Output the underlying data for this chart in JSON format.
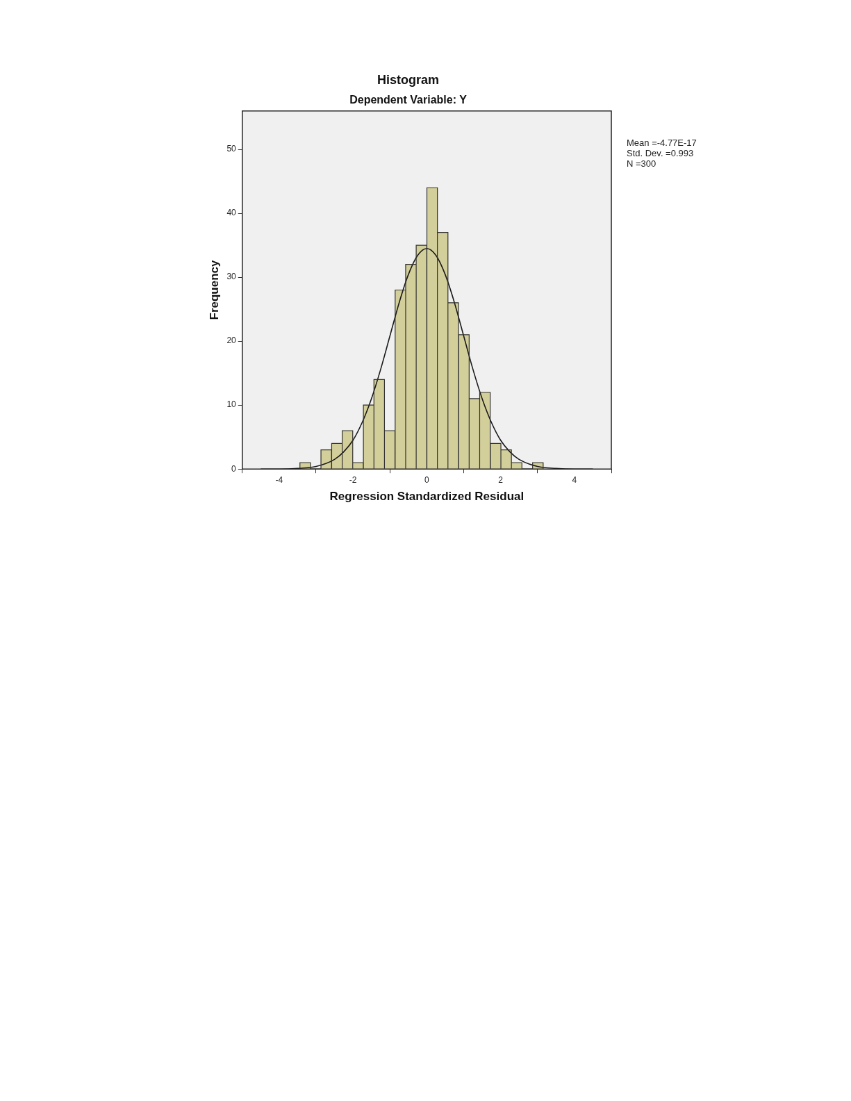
{
  "chart_data": {
    "type": "histogram",
    "title": "Histogram",
    "subtitle": "Dependent Variable: Y",
    "xlabel": "Regression Standardized Residual",
    "ylabel": "Frequency",
    "bins": [
      -3.44,
      -3.15,
      -2.87,
      -2.58,
      -2.29,
      -2.01,
      -1.72,
      -1.43,
      -1.15,
      -0.86,
      -0.57,
      -0.29,
      0,
      0.29,
      0.57,
      0.86,
      1.15,
      1.43,
      1.72,
      2.01,
      2.29,
      2.58,
      2.87,
      3.15
    ],
    "values": [
      1,
      0,
      3,
      4,
      6,
      1,
      10,
      14,
      6,
      28,
      32,
      35,
      44,
      37,
      26,
      21,
      11,
      12,
      4,
      3,
      1,
      0,
      1
    ],
    "color": "#d3cf9b",
    "series": [
      {
        "type": "line",
        "color": "#1a1a1a",
        "x": [
          -4.5,
          -4,
          -3.5,
          -3,
          -2.5,
          -2.25,
          -2,
          -1.75,
          -1.5,
          -1.25,
          -1,
          -0.75,
          -0.5,
          -0.25,
          0,
          0.25,
          0.5,
          0.75,
          1,
          1.25,
          1.5,
          1.75,
          2,
          2.25,
          2.5,
          3,
          3.5,
          4,
          4.5
        ],
        "values": [
          0,
          0,
          0.1,
          0.4,
          1.5,
          2.7,
          4.5,
          7.3,
          11.0,
          15.6,
          20.8,
          26.0,
          30.4,
          33.4,
          34.5,
          33.4,
          30.4,
          26.0,
          20.8,
          15.6,
          11.0,
          7.3,
          4.5,
          2.7,
          1.5,
          0.4,
          0.1,
          0,
          0
        ]
      }
    ],
    "xlim": [
      -5,
      5
    ],
    "xticks": [
      -4,
      -2,
      0,
      2,
      4
    ],
    "ylim": [
      0,
      56
    ],
    "yticks": [
      0,
      10,
      20,
      30,
      40,
      50
    ],
    "annotations": [
      "Mean =-4.77E-17",
      "Std. Dev. =0.993",
      "N =300"
    ],
    "marker": "none",
    "line_style": "solid"
  }
}
